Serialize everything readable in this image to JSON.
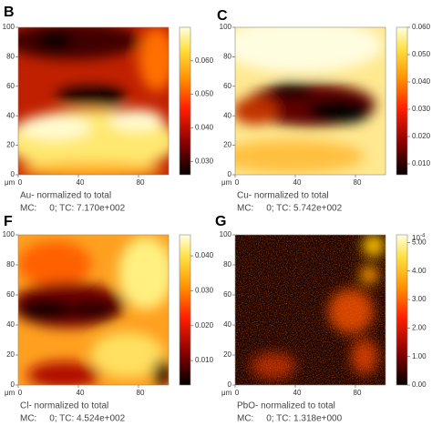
{
  "chart_data": [
    {
      "type": "heatmap",
      "panel": "B",
      "caption": "Au- normalized to total",
      "stats": "MC:     0; TC: 7.170e+002",
      "x_label": "μm",
      "xlim": [
        0,
        100
      ],
      "ylim": [
        0,
        100
      ],
      "xticks": [
        0,
        40,
        80
      ],
      "yticks": [
        0,
        20,
        40,
        60,
        80,
        100
      ],
      "clim": [
        0.026,
        0.07
      ],
      "cticks": [
        {
          "value": 0.03,
          "label": "0.030"
        },
        {
          "value": 0.04,
          "label": "0.040"
        },
        {
          "value": 0.05,
          "label": "0.050"
        },
        {
          "value": 0.06,
          "label": "0.060"
        }
      ]
    },
    {
      "type": "heatmap",
      "panel": "C",
      "caption": "Cu- normalized to total",
      "stats": "MC:     0; TC: 5.742e+002",
      "x_label": "μm",
      "xlim": [
        0,
        100
      ],
      "ylim": [
        0,
        100
      ],
      "xticks": [
        0,
        40,
        80
      ],
      "yticks": [
        0,
        20,
        40,
        60,
        80,
        100
      ],
      "clim": [
        0.006,
        0.06
      ],
      "cticks": [
        {
          "value": 0.01,
          "label": "0.010"
        },
        {
          "value": 0.02,
          "label": "0.020"
        },
        {
          "value": 0.03,
          "label": "0.030"
        },
        {
          "value": 0.04,
          "label": "0.040"
        },
        {
          "value": 0.05,
          "label": "0.050"
        },
        {
          "value": 0.06,
          "label": "0.060"
        }
      ]
    },
    {
      "type": "heatmap",
      "panel": "F",
      "caption": "Cl- normalized to total",
      "stats": "MC:     0; TC: 4.524e+002",
      "x_label": "μm",
      "xlim": [
        0,
        100
      ],
      "ylim": [
        0,
        100
      ],
      "xticks": [
        0,
        40,
        80
      ],
      "yticks": [
        0,
        20,
        40,
        60,
        80,
        100
      ],
      "clim": [
        0.003,
        0.046
      ],
      "cticks": [
        {
          "value": 0.01,
          "label": "0.010"
        },
        {
          "value": 0.02,
          "label": "0.020"
        },
        {
          "value": 0.03,
          "label": "0.030"
        },
        {
          "value": 0.04,
          "label": "0.040"
        }
      ]
    },
    {
      "type": "heatmap",
      "panel": "G",
      "caption": "PbO- normalized to total",
      "stats": "MC:     0; TC: 1.318e+000",
      "x_label": "μm",
      "xlim": [
        0,
        100
      ],
      "ylim": [
        0,
        100
      ],
      "xticks": [
        0,
        40,
        80
      ],
      "yticks": [
        0,
        20,
        40,
        60,
        80,
        100
      ],
      "clim": [
        0,
        5.27
      ],
      "cscale": {
        "base": "10",
        "exponent": "-4"
      },
      "cticks": [
        {
          "value": 0,
          "label": "0.00"
        },
        {
          "value": 1,
          "label": "1.00"
        },
        {
          "value": 2,
          "label": "2.00"
        },
        {
          "value": 3,
          "label": "3.00"
        },
        {
          "value": 4,
          "label": "4.00"
        },
        {
          "value": 5,
          "label": "5.00"
        }
      ]
    }
  ]
}
